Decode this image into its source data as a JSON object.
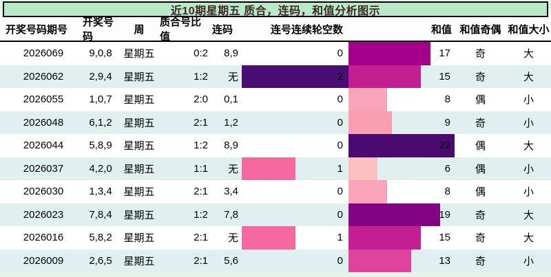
{
  "page": {
    "title": "近10期星期五 质合，连码，和值分析图示"
  },
  "colors": {
    "page_bg": "#e6f4e9",
    "title_bg": "#b9e9c9",
    "title_text": "#40282a",
    "row_alt_bg": "#dff0ee",
    "border": "#000000",
    "skip_bar_level1": "#f6699e",
    "skip_bar_level2": "#4a0d73"
  },
  "table": {
    "headers": {
      "issue": "开奖号码期号",
      "numbers": "开奖号码",
      "week": "周",
      "ratio": "质合号比值",
      "lianma": "连码",
      "skip": "连号连续轮空数",
      "sum": "和值",
      "parity": "和值奇偶",
      "size": "和值大小"
    },
    "rows": [
      {
        "issue": "2026069",
        "numbers": "9,0,8",
        "week": "星期五",
        "ratio": "0:2",
        "lianma": "8,9",
        "skip": 0,
        "skip_bar_color": null,
        "sum": 17,
        "sum_bar_color": "#a5008c",
        "parity": "奇",
        "size": "大"
      },
      {
        "issue": "2026062",
        "numbers": "2,9,4",
        "week": "星期五",
        "ratio": "1:2",
        "lianma": "无",
        "skip": 2,
        "skip_bar_color": "#4a0d73",
        "sum": 15,
        "sum_bar_color": "#c41e93",
        "parity": "奇",
        "size": "大"
      },
      {
        "issue": "2026055",
        "numbers": "1,0,7",
        "week": "星期五",
        "ratio": "2:0",
        "lianma": "0,1",
        "skip": 0,
        "skip_bar_color": null,
        "sum": 8,
        "sum_bar_color": "#f9a4b8",
        "parity": "偶",
        "size": "小"
      },
      {
        "issue": "2026048",
        "numbers": "6,1,2",
        "week": "星期五",
        "ratio": "2:1",
        "lianma": "1,2",
        "skip": 0,
        "skip_bar_color": null,
        "sum": 9,
        "sum_bar_color": "#f99db1",
        "parity": "奇",
        "size": "小"
      },
      {
        "issue": "2026044",
        "numbers": "5,8,9",
        "week": "星期五",
        "ratio": "1:2",
        "lianma": "8,9",
        "skip": 0,
        "skip_bar_color": null,
        "sum": 22,
        "sum_bar_color": "#4a0a70",
        "parity": "偶",
        "size": "大"
      },
      {
        "issue": "2026037",
        "numbers": "4,2,0",
        "week": "星期五",
        "ratio": "1:1",
        "lianma": "无",
        "skip": 1,
        "skip_bar_color": "#f6699e",
        "sum": 6,
        "sum_bar_color": "#fcc0c0",
        "parity": "偶",
        "size": "小"
      },
      {
        "issue": "2026030",
        "numbers": "1,3,4",
        "week": "星期五",
        "ratio": "2:1",
        "lianma": "3,4",
        "skip": 0,
        "skip_bar_color": null,
        "sum": 8,
        "sum_bar_color": "#f9a4b8",
        "parity": "偶",
        "size": "小"
      },
      {
        "issue": "2026023",
        "numbers": "7,8,4",
        "week": "星期五",
        "ratio": "1:2",
        "lianma": "7,8",
        "skip": 0,
        "skip_bar_color": null,
        "sum": 19,
        "sum_bar_color": "#820384",
        "parity": "奇",
        "size": "大"
      },
      {
        "issue": "2026016",
        "numbers": "5,8,2",
        "week": "星期五",
        "ratio": "2:1",
        "lianma": "无",
        "skip": 1,
        "skip_bar_color": "#f6699e",
        "sum": 15,
        "sum_bar_color": "#c41e93",
        "parity": "奇",
        "size": "大"
      },
      {
        "issue": "2026009",
        "numbers": "2,6,5",
        "week": "星期五",
        "ratio": "2:1",
        "lianma": "5,6",
        "skip": 0,
        "skip_bar_color": null,
        "sum": 13,
        "sum_bar_color": "#e0439c",
        "parity": "奇",
        "size": "小"
      }
    ]
  },
  "chart_data": {
    "type": "table",
    "title": "近10期星期五 质合，连码，和值分析图示",
    "columns": [
      "开奖号码期号",
      "开奖号码",
      "周",
      "质合号比值",
      "连码",
      "连号连续轮空数",
      "和值",
      "和值奇偶",
      "和值大小"
    ],
    "rows": [
      [
        "2026069",
        "9,0,8",
        "星期五",
        "0:2",
        "8,9",
        0,
        17,
        "奇",
        "大"
      ],
      [
        "2026062",
        "2,9,4",
        "星期五",
        "1:2",
        "无",
        2,
        15,
        "奇",
        "大"
      ],
      [
        "2026055",
        "1,0,7",
        "星期五",
        "2:0",
        "0,1",
        0,
        8,
        "偶",
        "小"
      ],
      [
        "2026048",
        "6,1,2",
        "星期五",
        "2:1",
        "1,2",
        0,
        9,
        "奇",
        "小"
      ],
      [
        "2026044",
        "5,8,9",
        "星期五",
        "1:2",
        "8,9",
        0,
        22,
        "偶",
        "大"
      ],
      [
        "2026037",
        "4,2,0",
        "星期五",
        "1:1",
        "无",
        1,
        6,
        "偶",
        "小"
      ],
      [
        "2026030",
        "1,3,4",
        "星期五",
        "2:1",
        "3,4",
        0,
        8,
        "偶",
        "小"
      ],
      [
        "2026023",
        "7,8,4",
        "星期五",
        "1:2",
        "7,8",
        0,
        19,
        "奇",
        "大"
      ],
      [
        "2026016",
        "5,8,2",
        "星期五",
        "2:1",
        "无",
        1,
        15,
        "奇",
        "大"
      ],
      [
        "2026009",
        "2,6,5",
        "星期五",
        "2:1",
        "5,6",
        0,
        13,
        "奇",
        "小"
      ]
    ],
    "bar_series": [
      {
        "name": "连号连续轮空数",
        "values": [
          0,
          2,
          0,
          0,
          0,
          1,
          0,
          0,
          1,
          0
        ],
        "axis_max": 2,
        "direction": "horizontal"
      },
      {
        "name": "和值",
        "values": [
          17,
          15,
          8,
          9,
          22,
          6,
          8,
          19,
          15,
          13
        ],
        "axis_max": 22,
        "direction": "horizontal"
      }
    ],
    "legend": "none",
    "grid": false
  }
}
